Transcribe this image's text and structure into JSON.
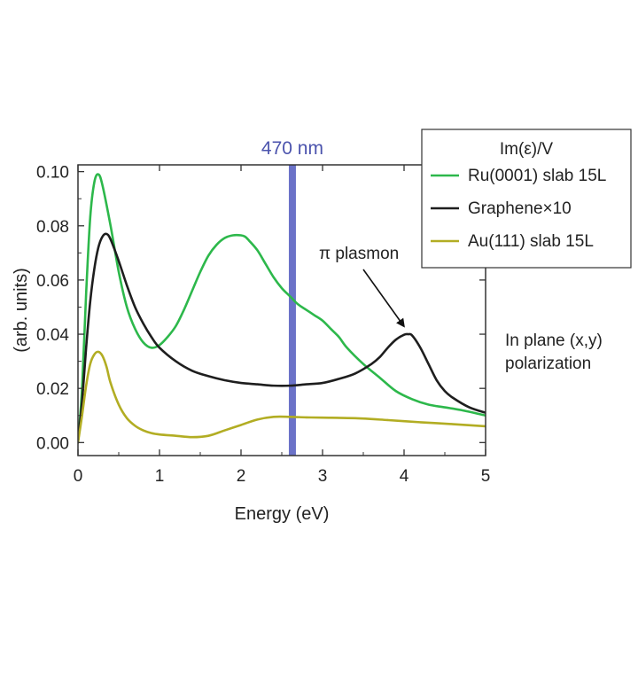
{
  "chart_data": {
    "type": "line",
    "title": "",
    "xlabel": "Energy (eV)",
    "ylabel": "(arb. units)",
    "xlim": [
      0,
      5
    ],
    "ylim": [
      0,
      0.105
    ],
    "x_ticks": [
      "0",
      "1",
      "2",
      "3",
      "4",
      "5"
    ],
    "y_ticks": [
      "0.00",
      "0.02",
      "0.04",
      "0.06",
      "0.08",
      "0.10"
    ],
    "legend_title": "Im(ε)/V",
    "legend_position": "top-right",
    "series": [
      {
        "name": "Ru(0001) slab 15L",
        "color": "#2db84b",
        "x": [
          0,
          0.05,
          0.1,
          0.15,
          0.2,
          0.25,
          0.3,
          0.4,
          0.5,
          0.6,
          0.7,
          0.8,
          0.9,
          1.0,
          1.1,
          1.2,
          1.3,
          1.4,
          1.5,
          1.6,
          1.7,
          1.8,
          1.9,
          2.0,
          2.05,
          2.1,
          2.2,
          2.3,
          2.4,
          2.5,
          2.6,
          2.7,
          2.8,
          2.9,
          3.0,
          3.1,
          3.2,
          3.3,
          3.5,
          3.7,
          3.9,
          4.1,
          4.3,
          4.5,
          4.7,
          5.0
        ],
        "values": [
          0.0,
          0.02,
          0.055,
          0.083,
          0.096,
          0.099,
          0.095,
          0.08,
          0.063,
          0.05,
          0.042,
          0.037,
          0.035,
          0.036,
          0.039,
          0.043,
          0.049,
          0.056,
          0.063,
          0.069,
          0.073,
          0.0755,
          0.0765,
          0.0765,
          0.076,
          0.0745,
          0.071,
          0.066,
          0.061,
          0.057,
          0.054,
          0.051,
          0.049,
          0.047,
          0.045,
          0.042,
          0.039,
          0.035,
          0.029,
          0.024,
          0.019,
          0.016,
          0.014,
          0.013,
          0.012,
          0.01
        ]
      },
      {
        "name": "Graphene×10",
        "color": "#1e1e1e",
        "x": [
          0,
          0.05,
          0.1,
          0.15,
          0.2,
          0.25,
          0.3,
          0.35,
          0.4,
          0.5,
          0.6,
          0.7,
          0.8,
          0.9,
          1.0,
          1.2,
          1.4,
          1.6,
          1.8,
          2.0,
          2.2,
          2.4,
          2.6,
          2.8,
          3.0,
          3.2,
          3.4,
          3.6,
          3.7,
          3.8,
          3.9,
          4.0,
          4.05,
          4.1,
          4.2,
          4.3,
          4.4,
          4.5,
          4.6,
          4.8,
          5.0
        ],
        "values": [
          0.0,
          0.015,
          0.035,
          0.052,
          0.064,
          0.072,
          0.076,
          0.077,
          0.075,
          0.067,
          0.058,
          0.05,
          0.044,
          0.039,
          0.035,
          0.03,
          0.0265,
          0.0245,
          0.023,
          0.022,
          0.0215,
          0.021,
          0.021,
          0.0215,
          0.022,
          0.0235,
          0.0255,
          0.029,
          0.0315,
          0.035,
          0.038,
          0.0398,
          0.04,
          0.0395,
          0.035,
          0.029,
          0.023,
          0.019,
          0.0165,
          0.013,
          0.011
        ]
      },
      {
        "name": "Au(111) slab 15L",
        "color": "#b2ad23",
        "x": [
          0,
          0.05,
          0.1,
          0.15,
          0.2,
          0.25,
          0.3,
          0.35,
          0.4,
          0.5,
          0.6,
          0.7,
          0.8,
          0.9,
          1.0,
          1.2,
          1.4,
          1.6,
          1.8,
          2.0,
          2.2,
          2.4,
          2.6,
          2.8,
          3.0,
          3.4,
          3.8,
          4.2,
          4.6,
          5.0
        ],
        "values": [
          0.0,
          0.01,
          0.021,
          0.029,
          0.0325,
          0.0335,
          0.032,
          0.028,
          0.022,
          0.014,
          0.009,
          0.0062,
          0.0045,
          0.0035,
          0.003,
          0.0025,
          0.002,
          0.0025,
          0.0045,
          0.0065,
          0.0085,
          0.0095,
          0.0095,
          0.0093,
          0.0092,
          0.009,
          0.0083,
          0.0075,
          0.0068,
          0.006
        ]
      }
    ],
    "vertical_marker": {
      "x": 2.63,
      "label": "470 nm",
      "color": "#5b63c2"
    },
    "annotations": [
      {
        "text": "π plasmon",
        "target_x": 4.03,
        "target_y": 0.041
      }
    ],
    "side_note": [
      "In plane (x,y)",
      "polarization"
    ]
  }
}
